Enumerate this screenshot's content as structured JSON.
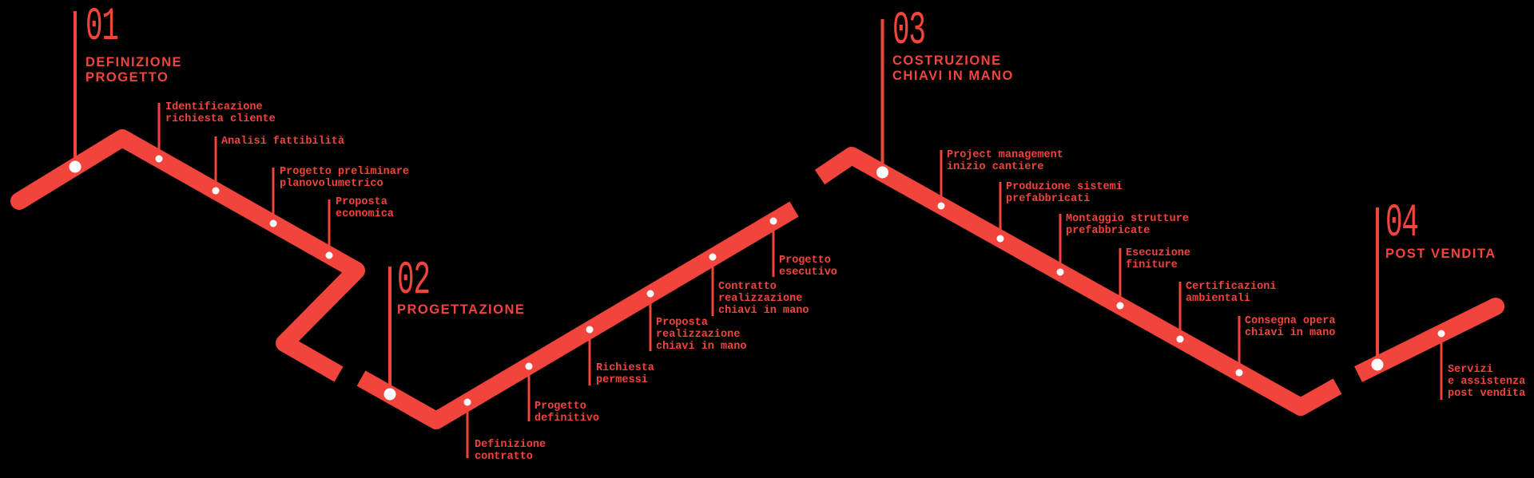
{
  "background": "#000000",
  "accent": "#F0443C",
  "dot_color": "#FFFFFF",
  "diagram_type": "process-timeline",
  "phases": [
    {
      "number": "01",
      "title_lines": [
        "DEFINIZIONE",
        "PROGETTO"
      ],
      "milestones": [
        {
          "label_lines": [
            "Identificazione",
            "richiesta cliente"
          ]
        },
        {
          "label_lines": [
            "Analisi fattibilità"
          ]
        },
        {
          "label_lines": [
            "Progetto preliminare",
            "planovolumetrico"
          ]
        },
        {
          "label_lines": [
            "Proposta",
            "economica"
          ]
        }
      ]
    },
    {
      "number": "02",
      "title_lines": [
        "PROGETTAZIONE"
      ],
      "milestones": [
        {
          "label_lines": [
            "Definizione",
            "contratto"
          ]
        },
        {
          "label_lines": [
            "Progetto",
            "definitivo"
          ]
        },
        {
          "label_lines": [
            "Richiesta",
            "permessi"
          ]
        },
        {
          "label_lines": [
            "Proposta",
            "realizzazione",
            "chiavi in mano"
          ]
        },
        {
          "label_lines": [
            "Contratto",
            "realizzazione",
            "chiavi in mano"
          ]
        },
        {
          "label_lines": [
            "Progetto",
            "esecutivo"
          ]
        }
      ]
    },
    {
      "number": "03",
      "title_lines": [
        "COSTRUZIONE",
        "CHIAVI IN MANO"
      ],
      "milestones": [
        {
          "label_lines": [
            "Project management",
            "inizio cantiere"
          ]
        },
        {
          "label_lines": [
            "Produzione sistemi",
            "prefabbricati"
          ]
        },
        {
          "label_lines": [
            "Montaggio strutture",
            "prefabbricate"
          ]
        },
        {
          "label_lines": [
            "Esecuzione",
            "finiture"
          ]
        },
        {
          "label_lines": [
            "Certificazioni",
            "ambientali"
          ]
        },
        {
          "label_lines": [
            "Consegna opera",
            "chiavi in mano"
          ]
        }
      ]
    },
    {
      "number": "04",
      "title_lines": [
        "POST VENDITA"
      ],
      "milestones": [
        {
          "label_lines": [
            "Servizi",
            "e assistenza",
            "post vendita"
          ]
        }
      ]
    }
  ]
}
